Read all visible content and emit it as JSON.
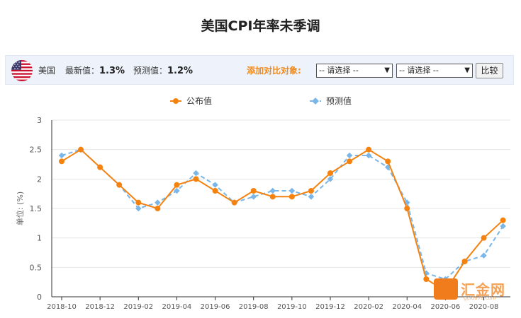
{
  "page": {
    "title": "美国CPI年率未季调"
  },
  "info_bar": {
    "country": "美国",
    "latest_label": "最新值：",
    "latest_value": "1.3%",
    "forecast_label": "预测值：",
    "forecast_value": "1.2%",
    "compare_label": "添加对比对象:",
    "select1": "-- 请选择 --",
    "select2": "-- 请选择 --",
    "compare_button": "比较",
    "flag_icon": "us-flag-icon"
  },
  "watermark": {
    "text": "汇金网",
    "url": "gold678.com"
  },
  "colors": {
    "published": "#f5820f",
    "forecast": "#7ab6e8",
    "accent": "#f08a1c",
    "bar_bg": "#eef3fb"
  },
  "chart_data": {
    "type": "line",
    "title": "",
    "xlabel": "",
    "ylabel": "单位: (%)",
    "ylim": [
      0,
      3
    ],
    "yticks": [
      "0",
      "0.5",
      "1",
      "1.5",
      "2",
      "2.5",
      "3"
    ],
    "grid": "horizontal",
    "legend_position": "top-center",
    "x": [
      "2018-10",
      "2018-11",
      "2018-12",
      "2019-01",
      "2019-02",
      "2019-03",
      "2019-04",
      "2019-05",
      "2019-06",
      "2019-07",
      "2019-08",
      "2019-09",
      "2019-10",
      "2019-11",
      "2019-12",
      "2020-01",
      "2020-02",
      "2020-03",
      "2020-04",
      "2020-05",
      "2020-06",
      "2020-07",
      "2020-08",
      "2020-09"
    ],
    "xtick_labels": [
      "2018-10",
      "2018-12",
      "2019-02",
      "2019-04",
      "2019-06",
      "2019-08",
      "2019-10",
      "2019-12",
      "2020-02",
      "2020-04",
      "2020-06",
      "2020-08"
    ],
    "series": [
      {
        "name": "公布值",
        "color": "#f5820f",
        "style": "solid",
        "values": [
          2.3,
          2.5,
          2.2,
          1.9,
          1.6,
          1.5,
          1.9,
          2.0,
          1.8,
          1.6,
          1.8,
          1.7,
          1.7,
          1.8,
          2.1,
          2.3,
          2.5,
          2.3,
          1.5,
          0.3,
          0.1,
          0.6,
          1.0,
          1.3
        ]
      },
      {
        "name": "预测值",
        "color": "#7ab6e8",
        "style": "dashed",
        "values": [
          2.4,
          2.5,
          2.2,
          1.9,
          1.5,
          1.6,
          1.8,
          2.1,
          1.9,
          1.6,
          1.7,
          1.8,
          1.8,
          1.7,
          2.0,
          2.4,
          2.4,
          2.2,
          1.6,
          0.4,
          0.3,
          0.6,
          0.7,
          1.2
        ]
      }
    ]
  }
}
